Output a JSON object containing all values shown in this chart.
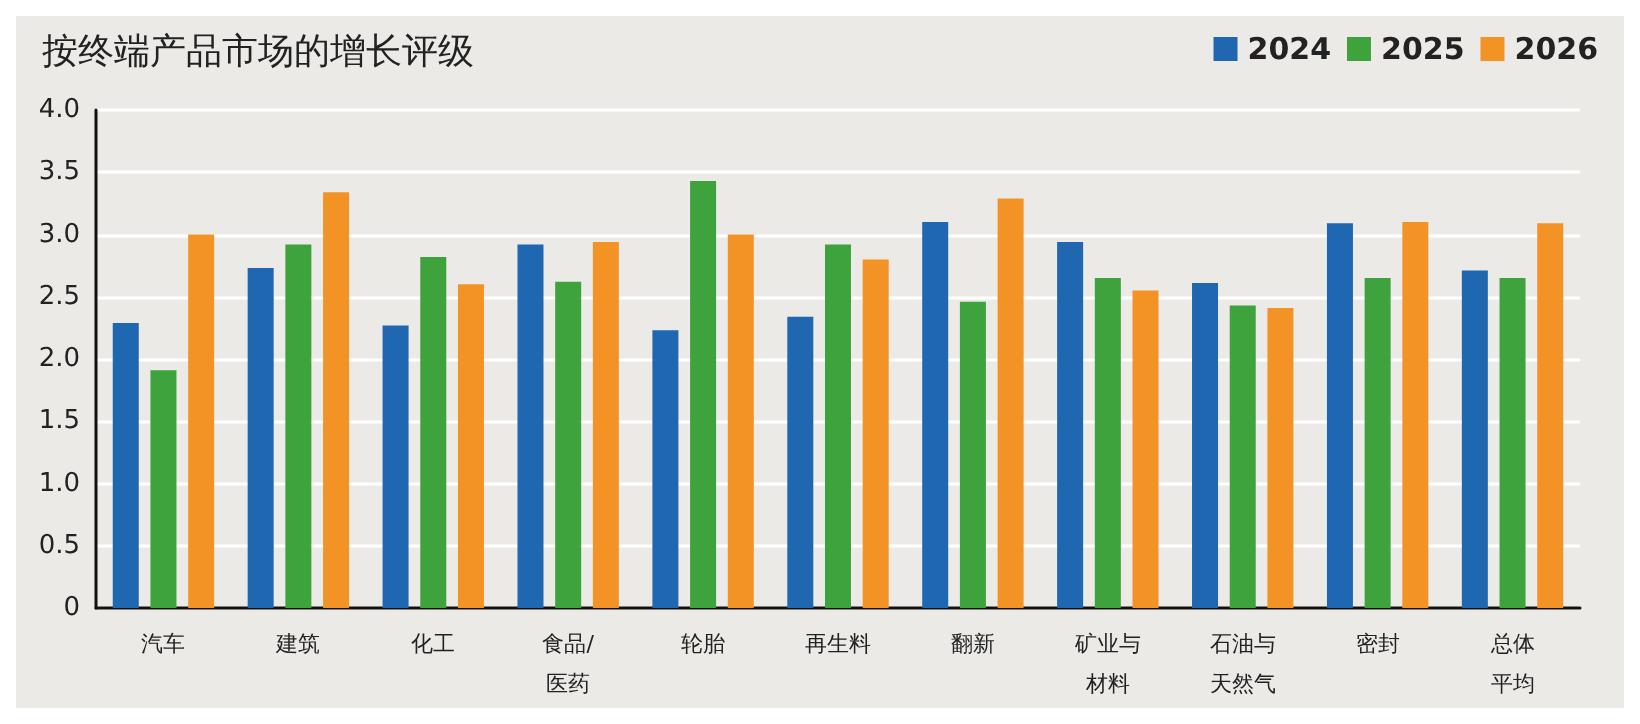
{
  "chart_data": {
    "type": "bar",
    "title": "按终端产品市场的增长评级",
    "categories": [
      "汽车",
      "建筑",
      "化工",
      "食品/医药",
      "轮胎",
      "再生料",
      "翻新",
      "矿业与材料",
      "石油与天然气",
      "密封",
      "总体平均"
    ],
    "series": [
      {
        "name": "2024",
        "color": "#1f67b1",
        "values": [
          2.29,
          2.73,
          2.27,
          2.92,
          2.23,
          2.34,
          3.1,
          2.94,
          2.61,
          3.09,
          2.71
        ]
      },
      {
        "name": "2025",
        "color": "#3ea23d",
        "values": [
          1.91,
          2.92,
          2.82,
          2.62,
          3.43,
          2.92,
          2.46,
          2.65,
          2.43,
          2.65,
          2.65
        ]
      },
      {
        "name": "2026",
        "color": "#f39325",
        "values": [
          3.0,
          3.34,
          2.6,
          2.94,
          3.0,
          2.8,
          3.29,
          2.55,
          2.41,
          3.1,
          3.09
        ]
      }
    ],
    "ylim": [
      0,
      4
    ],
    "yticks": [
      0,
      {
        "value": 0.5,
        "label": "0.5"
      },
      {
        "value": 1,
        "label": "1.0"
      },
      {
        "value": 1.5,
        "label": "1.5"
      },
      {
        "value": 2,
        "label": "2.0"
      },
      {
        "value": 2.5,
        "label": "2.5"
      },
      {
        "value": 3,
        "label": "3.0"
      },
      {
        "value": 3.5,
        "label": "3.5"
      },
      {
        "value": 4,
        "label": "4.0"
      }
    ],
    "grid": "y",
    "legend": "top right"
  }
}
